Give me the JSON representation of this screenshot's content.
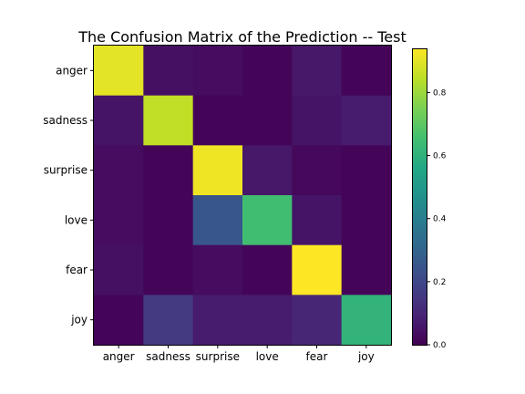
{
  "chart_data": {
    "type": "heatmap",
    "title": "The Confusion Matrix of the Prediction -- Test",
    "x_labels": [
      "anger",
      "sadness",
      "surprise",
      "love",
      "fear",
      "joy"
    ],
    "y_labels": [
      "anger",
      "sadness",
      "surprise",
      "love",
      "fear",
      "joy"
    ],
    "values": [
      [
        0.9,
        0.04,
        0.03,
        0.01,
        0.06,
        0.01
      ],
      [
        0.05,
        0.85,
        0.01,
        0.01,
        0.05,
        0.07
      ],
      [
        0.03,
        0.01,
        0.92,
        0.06,
        0.02,
        0.01
      ],
      [
        0.03,
        0.01,
        0.25,
        0.65,
        0.05,
        0.01
      ],
      [
        0.04,
        0.01,
        0.03,
        0.01,
        0.94,
        0.01
      ],
      [
        0.01,
        0.16,
        0.07,
        0.07,
        0.1,
        0.61
      ]
    ],
    "colormap": "viridis",
    "color_range": [
      0,
      0.94
    ],
    "colorbar_ticks": [
      "0.0",
      "0.2",
      "0.4",
      "0.6",
      "0.8"
    ],
    "grid": false,
    "legend": "colorbar-right"
  }
}
